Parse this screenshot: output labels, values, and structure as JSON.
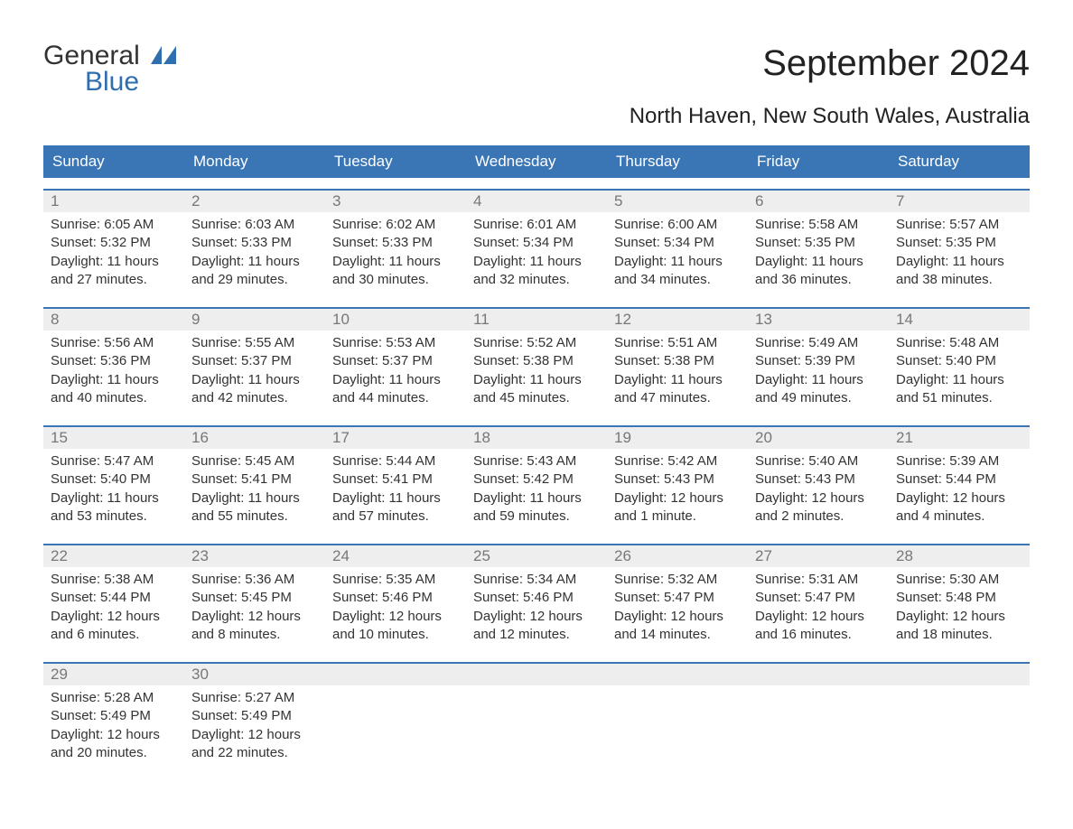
{
  "brand": {
    "general": "General",
    "blue": "Blue"
  },
  "title": "September 2024",
  "subtitle": "North Haven, New South Wales, Australia",
  "colors": {
    "header_bg": "#3a76b5",
    "header_text": "#ffffff",
    "daynum_bg": "#eeeeee",
    "daynum_text": "#777777",
    "week_border": "#3a76b5",
    "body_text": "#333333",
    "logo_blue": "#2f6fb0"
  },
  "weekdays": [
    "Sunday",
    "Monday",
    "Tuesday",
    "Wednesday",
    "Thursday",
    "Friday",
    "Saturday"
  ],
  "weeks": [
    [
      {
        "n": "1",
        "sunrise": "Sunrise: 6:05 AM",
        "sunset": "Sunset: 5:32 PM",
        "daylight": "Daylight: 11 hours and 27 minutes."
      },
      {
        "n": "2",
        "sunrise": "Sunrise: 6:03 AM",
        "sunset": "Sunset: 5:33 PM",
        "daylight": "Daylight: 11 hours and 29 minutes."
      },
      {
        "n": "3",
        "sunrise": "Sunrise: 6:02 AM",
        "sunset": "Sunset: 5:33 PM",
        "daylight": "Daylight: 11 hours and 30 minutes."
      },
      {
        "n": "4",
        "sunrise": "Sunrise: 6:01 AM",
        "sunset": "Sunset: 5:34 PM",
        "daylight": "Daylight: 11 hours and 32 minutes."
      },
      {
        "n": "5",
        "sunrise": "Sunrise: 6:00 AM",
        "sunset": "Sunset: 5:34 PM",
        "daylight": "Daylight: 11 hours and 34 minutes."
      },
      {
        "n": "6",
        "sunrise": "Sunrise: 5:58 AM",
        "sunset": "Sunset: 5:35 PM",
        "daylight": "Daylight: 11 hours and 36 minutes."
      },
      {
        "n": "7",
        "sunrise": "Sunrise: 5:57 AM",
        "sunset": "Sunset: 5:35 PM",
        "daylight": "Daylight: 11 hours and 38 minutes."
      }
    ],
    [
      {
        "n": "8",
        "sunrise": "Sunrise: 5:56 AM",
        "sunset": "Sunset: 5:36 PM",
        "daylight": "Daylight: 11 hours and 40 minutes."
      },
      {
        "n": "9",
        "sunrise": "Sunrise: 5:55 AM",
        "sunset": "Sunset: 5:37 PM",
        "daylight": "Daylight: 11 hours and 42 minutes."
      },
      {
        "n": "10",
        "sunrise": "Sunrise: 5:53 AM",
        "sunset": "Sunset: 5:37 PM",
        "daylight": "Daylight: 11 hours and 44 minutes."
      },
      {
        "n": "11",
        "sunrise": "Sunrise: 5:52 AM",
        "sunset": "Sunset: 5:38 PM",
        "daylight": "Daylight: 11 hours and 45 minutes."
      },
      {
        "n": "12",
        "sunrise": "Sunrise: 5:51 AM",
        "sunset": "Sunset: 5:38 PM",
        "daylight": "Daylight: 11 hours and 47 minutes."
      },
      {
        "n": "13",
        "sunrise": "Sunrise: 5:49 AM",
        "sunset": "Sunset: 5:39 PM",
        "daylight": "Daylight: 11 hours and 49 minutes."
      },
      {
        "n": "14",
        "sunrise": "Sunrise: 5:48 AM",
        "sunset": "Sunset: 5:40 PM",
        "daylight": "Daylight: 11 hours and 51 minutes."
      }
    ],
    [
      {
        "n": "15",
        "sunrise": "Sunrise: 5:47 AM",
        "sunset": "Sunset: 5:40 PM",
        "daylight": "Daylight: 11 hours and 53 minutes."
      },
      {
        "n": "16",
        "sunrise": "Sunrise: 5:45 AM",
        "sunset": "Sunset: 5:41 PM",
        "daylight": "Daylight: 11 hours and 55 minutes."
      },
      {
        "n": "17",
        "sunrise": "Sunrise: 5:44 AM",
        "sunset": "Sunset: 5:41 PM",
        "daylight": "Daylight: 11 hours and 57 minutes."
      },
      {
        "n": "18",
        "sunrise": "Sunrise: 5:43 AM",
        "sunset": "Sunset: 5:42 PM",
        "daylight": "Daylight: 11 hours and 59 minutes."
      },
      {
        "n": "19",
        "sunrise": "Sunrise: 5:42 AM",
        "sunset": "Sunset: 5:43 PM",
        "daylight": "Daylight: 12 hours and 1 minute."
      },
      {
        "n": "20",
        "sunrise": "Sunrise: 5:40 AM",
        "sunset": "Sunset: 5:43 PM",
        "daylight": "Daylight: 12 hours and 2 minutes."
      },
      {
        "n": "21",
        "sunrise": "Sunrise: 5:39 AM",
        "sunset": "Sunset: 5:44 PM",
        "daylight": "Daylight: 12 hours and 4 minutes."
      }
    ],
    [
      {
        "n": "22",
        "sunrise": "Sunrise: 5:38 AM",
        "sunset": "Sunset: 5:44 PM",
        "daylight": "Daylight: 12 hours and 6 minutes."
      },
      {
        "n": "23",
        "sunrise": "Sunrise: 5:36 AM",
        "sunset": "Sunset: 5:45 PM",
        "daylight": "Daylight: 12 hours and 8 minutes."
      },
      {
        "n": "24",
        "sunrise": "Sunrise: 5:35 AM",
        "sunset": "Sunset: 5:46 PM",
        "daylight": "Daylight: 12 hours and 10 minutes."
      },
      {
        "n": "25",
        "sunrise": "Sunrise: 5:34 AM",
        "sunset": "Sunset: 5:46 PM",
        "daylight": "Daylight: 12 hours and 12 minutes."
      },
      {
        "n": "26",
        "sunrise": "Sunrise: 5:32 AM",
        "sunset": "Sunset: 5:47 PM",
        "daylight": "Daylight: 12 hours and 14 minutes."
      },
      {
        "n": "27",
        "sunrise": "Sunrise: 5:31 AM",
        "sunset": "Sunset: 5:47 PM",
        "daylight": "Daylight: 12 hours and 16 minutes."
      },
      {
        "n": "28",
        "sunrise": "Sunrise: 5:30 AM",
        "sunset": "Sunset: 5:48 PM",
        "daylight": "Daylight: 12 hours and 18 minutes."
      }
    ],
    [
      {
        "n": "29",
        "sunrise": "Sunrise: 5:28 AM",
        "sunset": "Sunset: 5:49 PM",
        "daylight": "Daylight: 12 hours and 20 minutes."
      },
      {
        "n": "30",
        "sunrise": "Sunrise: 5:27 AM",
        "sunset": "Sunset: 5:49 PM",
        "daylight": "Daylight: 12 hours and 22 minutes."
      },
      null,
      null,
      null,
      null,
      null
    ]
  ]
}
